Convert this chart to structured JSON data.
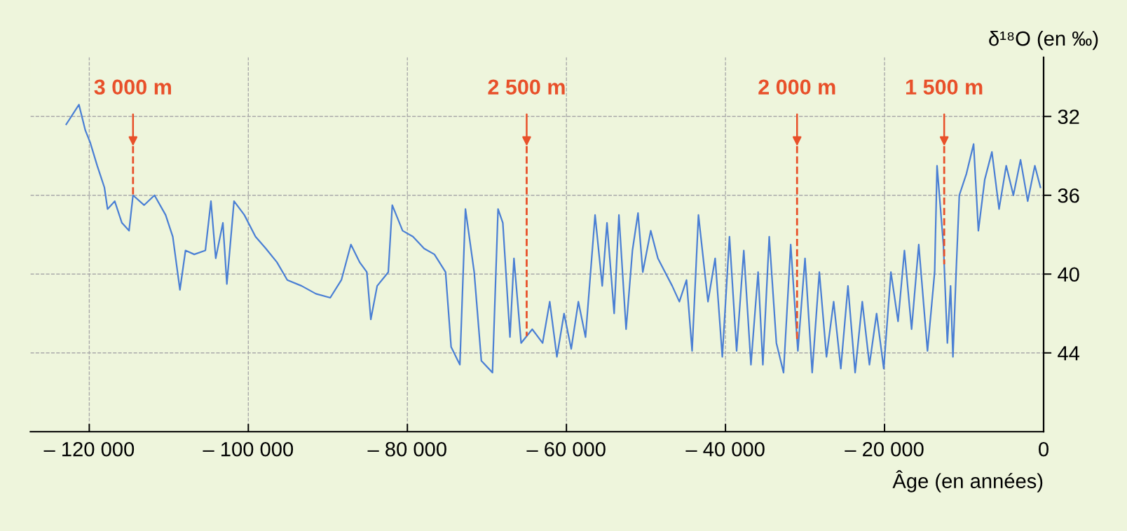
{
  "chart_data": {
    "type": "line",
    "xlabel": "Âge (en années)",
    "ylabel": "δ¹⁸O (en ‰)",
    "xlim": [
      -127400,
      0
    ],
    "ylim": [
      48,
      29
    ],
    "xticks": [
      {
        "value": -120000,
        "label": "– 120 000"
      },
      {
        "value": -100000,
        "label": "– 100 000"
      },
      {
        "value": -80000,
        "label": "– 80 000"
      },
      {
        "value": -60000,
        "label": "– 60 000"
      },
      {
        "value": -40000,
        "label": "– 40 000"
      },
      {
        "value": -20000,
        "label": "– 20 000"
      },
      0
    ],
    "yticks": [
      32,
      36,
      40,
      44
    ],
    "grid": true,
    "marker": "none",
    "line_style": "solid",
    "ref_lines": [
      {
        "axis": "x",
        "value": -114500,
        "label": "3 000 m",
        "color": "#e8502a",
        "line_style": "dashed"
      },
      {
        "axis": "x",
        "value": -65000,
        "label": "2 500 m",
        "color": "#e8502a",
        "line_style": "dashed"
      },
      {
        "axis": "x",
        "value": -31000,
        "label": "2 000 m",
        "color": "#e8502a",
        "line_style": "dashed"
      },
      {
        "axis": "x",
        "value": -12500,
        "label": "1 500 m",
        "color": "#e8502a",
        "line_style": "dashed"
      }
    ],
    "series": [
      {
        "color": "#4a7fd4",
        "x": [
          -122900,
          -121300,
          -120500,
          -119900,
          -119000,
          -118100,
          -117700,
          -116800,
          -115900,
          -115000,
          -114500,
          -113100,
          -111800,
          -110400,
          -109500,
          -108600,
          -107900,
          -106800,
          -105400,
          -104700,
          -104100,
          -103200,
          -102700,
          -101800,
          -100500,
          -99100,
          -97800,
          -96400,
          -95100,
          -93300,
          -91500,
          -89700,
          -88300,
          -87100,
          -86000,
          -85100,
          -84600,
          -83800,
          -82400,
          -81900,
          -80600,
          -79300,
          -77900,
          -76600,
          -75200,
          -74500,
          -73400,
          -72700,
          -71600,
          -70700,
          -69300,
          -68600,
          -68000,
          -67100,
          -66600,
          -65700,
          -64300,
          -63000,
          -62100,
          -61200,
          -60300,
          -59400,
          -58500,
          -57600,
          -56400,
          -55500,
          -54900,
          -54000,
          -53400,
          -52500,
          -51700,
          -51000,
          -50400,
          -49400,
          -48500,
          -47600,
          -46700,
          -45800,
          -44900,
          -44200,
          -43400,
          -42200,
          -41300,
          -40400,
          -39500,
          -38600,
          -37700,
          -36800,
          -35900,
          -35300,
          -34500,
          -33600,
          -32700,
          -31800,
          -30900,
          -30000,
          -29100,
          -28200,
          -27300,
          -26400,
          -25500,
          -24600,
          -23700,
          -22800,
          -21900,
          -21000,
          -20100,
          -19200,
          -18300,
          -17500,
          -16600,
          -15700,
          -14600,
          -13700,
          -13400,
          -12600,
          -12100,
          -11700,
          -11400,
          -11000,
          -10600,
          -9700,
          -8800,
          -8200,
          -7400,
          -6500,
          -5600,
          -4700,
          -3800,
          -2900,
          -2000,
          -1100,
          -400
        ],
        "values": [
          32.4,
          31.4,
          32.7,
          33.3,
          34.5,
          35.6,
          36.7,
          36.3,
          37.4,
          37.8,
          36.0,
          36.5,
          36.0,
          37.0,
          38.1,
          40.8,
          38.8,
          39.0,
          38.8,
          36.3,
          39.2,
          37.4,
          40.5,
          36.3,
          37.0,
          38.1,
          38.7,
          39.4,
          40.3,
          40.6,
          41.0,
          41.2,
          40.3,
          38.5,
          39.4,
          39.9,
          42.3,
          40.6,
          39.9,
          36.5,
          37.8,
          38.1,
          38.7,
          39.0,
          39.9,
          43.7,
          44.6,
          36.7,
          39.9,
          44.4,
          45.0,
          36.7,
          37.4,
          43.2,
          39.2,
          43.5,
          42.8,
          43.5,
          41.4,
          44.2,
          42.0,
          43.8,
          41.4,
          43.2,
          37.0,
          40.6,
          37.4,
          42.0,
          37.0,
          42.8,
          38.8,
          36.9,
          39.9,
          37.8,
          39.2,
          39.9,
          40.6,
          41.4,
          40.3,
          43.9,
          37.0,
          41.4,
          39.2,
          44.2,
          38.1,
          43.9,
          38.8,
          44.6,
          39.9,
          44.6,
          38.1,
          43.5,
          45.0,
          38.5,
          43.9,
          39.2,
          45.0,
          39.9,
          44.2,
          41.4,
          44.8,
          40.6,
          45.0,
          41.4,
          44.6,
          42.0,
          44.8,
          39.9,
          42.4,
          38.8,
          42.8,
          38.5,
          43.9,
          39.9,
          34.5,
          38.5,
          43.5,
          40.6,
          44.2,
          39.9,
          36.0,
          34.9,
          33.4,
          37.8,
          35.2,
          33.8,
          36.7,
          34.5,
          36.0,
          34.2,
          36.3,
          34.5,
          35.6
        ]
      }
    ]
  }
}
